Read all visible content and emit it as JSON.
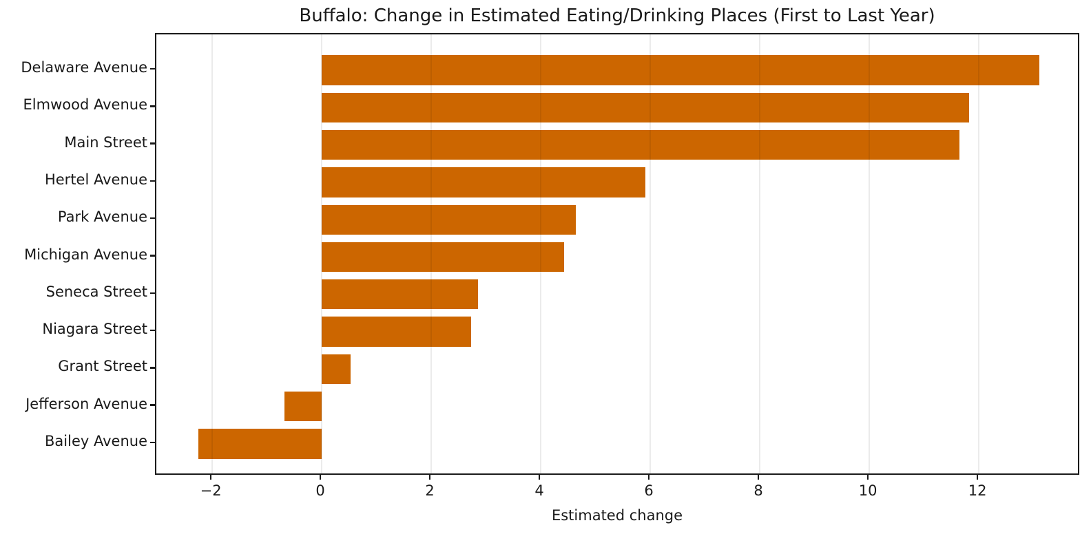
{
  "figure": {
    "background": "#ffffff",
    "text_color": "#1a1a1a"
  },
  "chart_data": {
    "type": "bar",
    "orientation": "horizontal",
    "title": "Buffalo: Change in Estimated Eating/Drinking Places (First to Last Year)",
    "xlabel": "Estimated change",
    "ylabel": "",
    "categories": [
      "Delaware Avenue",
      "Elmwood Avenue",
      "Main Street",
      "Hertel Avenue",
      "Park Avenue",
      "Michigan Avenue",
      "Seneca Street",
      "Niagara Street",
      "Grant Street",
      "Jefferson Avenue",
      "Bailey Avenue"
    ],
    "values": [
      13.11,
      11.82,
      11.65,
      5.91,
      4.64,
      4.43,
      2.86,
      2.73,
      0.53,
      -0.68,
      -2.25
    ],
    "xlim": [
      -3.02,
      13.86
    ],
    "xticks": [
      -2,
      0,
      2,
      4,
      6,
      8,
      10,
      12
    ],
    "xtick_labels": [
      "−2",
      "0",
      "2",
      "4",
      "6",
      "8",
      "10",
      "12"
    ],
    "bar_color": "#cc6600",
    "grid": true,
    "grid_color": "rgba(0,0,0,0.08)",
    "legend": "none"
  }
}
